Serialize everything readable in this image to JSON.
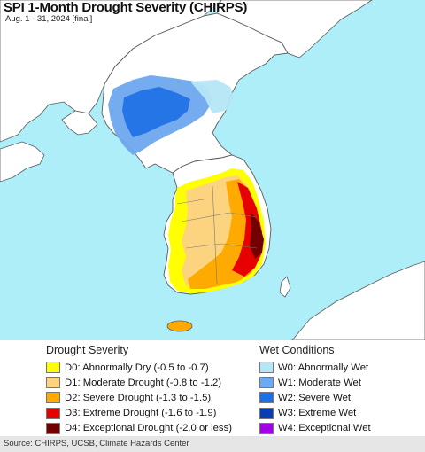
{
  "title": "SPI 1-Month Drought Severity (CHIRPS)",
  "subtitle": "Aug. 1 - 31, 2024 [final]",
  "colors": {
    "sea": "#aeeef9",
    "land": "#ffffff",
    "outline": "#5a5a5a"
  },
  "legend": {
    "drought": {
      "heading": "Drought Severity",
      "items": [
        {
          "label": "D0: Abnormally Dry (-0.5 to -0.7)",
          "color": "#ffff00"
        },
        {
          "label": "D1: Moderate Drought (-0.8 to -1.2)",
          "color": "#fcd37f"
        },
        {
          "label": "D2: Severe Drought (-1.3 to -1.5)",
          "color": "#ffaa00"
        },
        {
          "label": "D3: Extreme Drought (-1.6 to -1.9)",
          "color": "#e60000"
        },
        {
          "label": "D4: Exceptional Drought (-2.0 or less)",
          "color": "#730000"
        }
      ]
    },
    "wet": {
      "heading": "Wet Conditions",
      "items": [
        {
          "label": "W0: Abnormally Wet",
          "color": "#b5e6f5"
        },
        {
          "label": "W1: Moderate Wet",
          "color": "#6ea8ee"
        },
        {
          "label": "W2: Severe Wet",
          "color": "#1d6fe6"
        },
        {
          "label": "W3: Extreme Wet",
          "color": "#0a3db3"
        },
        {
          "label": "W4: Exceptional Wet",
          "color": "#a100e6"
        }
      ]
    }
  },
  "source": "Source: CHIRPS, UCSB, Climate Hazards Center"
}
